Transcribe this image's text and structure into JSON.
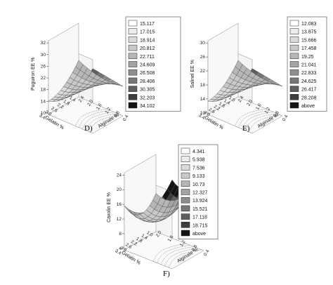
{
  "chart_data": [
    {
      "panel": "D)",
      "type": "surface3d",
      "zlabel": "Puguiron EE %",
      "xlabel": "Gelatin %",
      "ylabel": "Alginate %",
      "zticks": [
        "32",
        "30",
        "26",
        "22",
        "18",
        "14",
        "10"
      ],
      "xticks": [
        "1.4",
        "1.8",
        "2.2",
        "2.6",
        "3.0",
        "3.4"
      ],
      "yticks": [
        "0.4",
        "0.8",
        "1.2",
        "1.6",
        "2.0",
        "2.4"
      ],
      "surface": {
        "min": 10,
        "max": 36,
        "shape": "saddle"
      },
      "legend": [
        "15.117",
        "17.015",
        "18.914",
        "20.812",
        "22.711",
        "24.609",
        "26.508",
        "28.406",
        "30.305",
        "32.203",
        "34.102"
      ],
      "colors": [
        "#ffffff",
        "#ececec",
        "#dadada",
        "#c8c8c8",
        "#b6b6b6",
        "#a4a4a4",
        "#8e8e8e",
        "#767676",
        "#5e5e5e",
        "#3e3e3e",
        "#141414"
      ]
    },
    {
      "panel": "E)",
      "type": "surface3d",
      "zlabel": "Salinel EE %",
      "xlabel": "Gelatin %",
      "ylabel": "Alginate %",
      "zticks": [
        "30",
        "26",
        "22",
        "18",
        "14",
        "10"
      ],
      "xticks": [
        "1.0",
        "1.4",
        "1.8",
        "2.2",
        "2.6",
        "3.0",
        "3.4"
      ],
      "yticks": [
        "0.4",
        "0.8",
        "1.2",
        "1.6",
        "2.0",
        "2.4"
      ],
      "surface": {
        "min": 10,
        "max": 32,
        "shape": "saddle"
      },
      "legend": [
        "12.083",
        "13.875",
        "15.666",
        "17.458",
        "19.25",
        "21.041",
        "22.833",
        "24.625",
        "26.417",
        "28.208",
        "above"
      ],
      "colors": [
        "#ffffff",
        "#ececec",
        "#dadada",
        "#c8c8c8",
        "#b6b6b6",
        "#a4a4a4",
        "#8e8e8e",
        "#767676",
        "#5e5e5e",
        "#3e3e3e",
        "#141414"
      ]
    },
    {
      "panel": "F)",
      "type": "surface3d",
      "zlabel": "Caxolin EE %",
      "xlabel": "Gelatin %",
      "ylabel": "Alginate %",
      "zticks": [
        "24",
        "20",
        "16",
        "12",
        "8",
        "4"
      ],
      "xticks": [
        "1.0",
        "1.4",
        "1.8",
        "2.2",
        "2.6",
        "3.0",
        "3.4"
      ],
      "yticks": [
        "0.4",
        "0.8",
        "1.2",
        "1.6",
        "2.0"
      ],
      "surface": {
        "min": 4,
        "max": 22,
        "shape": "bowl"
      },
      "legend": [
        "4.341",
        "5.938",
        "7.536",
        "9.133",
        "10.73",
        "12.327",
        "13.924",
        "15.521",
        "17.118",
        "18.715",
        "above"
      ],
      "colors": [
        "#ffffff",
        "#ececec",
        "#dadada",
        "#c8c8c8",
        "#b6b6b6",
        "#a4a4a4",
        "#8e8e8e",
        "#767676",
        "#5e5e5e",
        "#3e3e3e",
        "#141414"
      ]
    }
  ]
}
